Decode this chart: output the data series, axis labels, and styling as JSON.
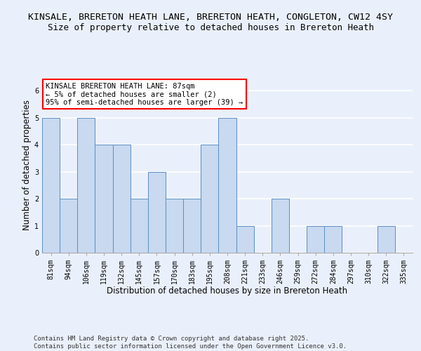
{
  "title_line1": "KINSALE, BRERETON HEATH LANE, BRERETON HEATH, CONGLETON, CW12 4SY",
  "title_line2": "Size of property relative to detached houses in Brereton Heath",
  "xlabel": "Distribution of detached houses by size in Brereton Heath",
  "ylabel": "Number of detached properties",
  "categories": [
    "81sqm",
    "94sqm",
    "106sqm",
    "119sqm",
    "132sqm",
    "145sqm",
    "157sqm",
    "170sqm",
    "183sqm",
    "195sqm",
    "208sqm",
    "221sqm",
    "233sqm",
    "246sqm",
    "259sqm",
    "272sqm",
    "284sqm",
    "297sqm",
    "310sqm",
    "322sqm",
    "335sqm"
  ],
  "values": [
    5,
    2,
    5,
    4,
    4,
    2,
    3,
    2,
    2,
    4,
    5,
    1,
    0,
    2,
    0,
    1,
    1,
    0,
    0,
    1,
    0
  ],
  "bar_color": "#c8d9f0",
  "bar_edge_color": "#5b8ec4",
  "annotation_text": "KINSALE BRERETON HEATH LANE: 87sqm\n← 5% of detached houses are smaller (2)\n95% of semi-detached houses are larger (39) →",
  "annotation_box_color": "white",
  "annotation_box_edge": "red",
  "ylim": [
    0,
    6.5
  ],
  "yticks": [
    0,
    1,
    2,
    3,
    4,
    5,
    6
  ],
  "background_color": "#eaf0fb",
  "plot_bg_color": "#eaf0fb",
  "grid_color": "white",
  "footer_line1": "Contains HM Land Registry data © Crown copyright and database right 2025.",
  "footer_line2": "Contains public sector information licensed under the Open Government Licence v3.0.",
  "title_fontsize": 9.5,
  "subtitle_fontsize": 9,
  "axis_label_fontsize": 8.5,
  "tick_fontsize": 7,
  "annotation_fontsize": 7.5,
  "footer_fontsize": 6.5
}
